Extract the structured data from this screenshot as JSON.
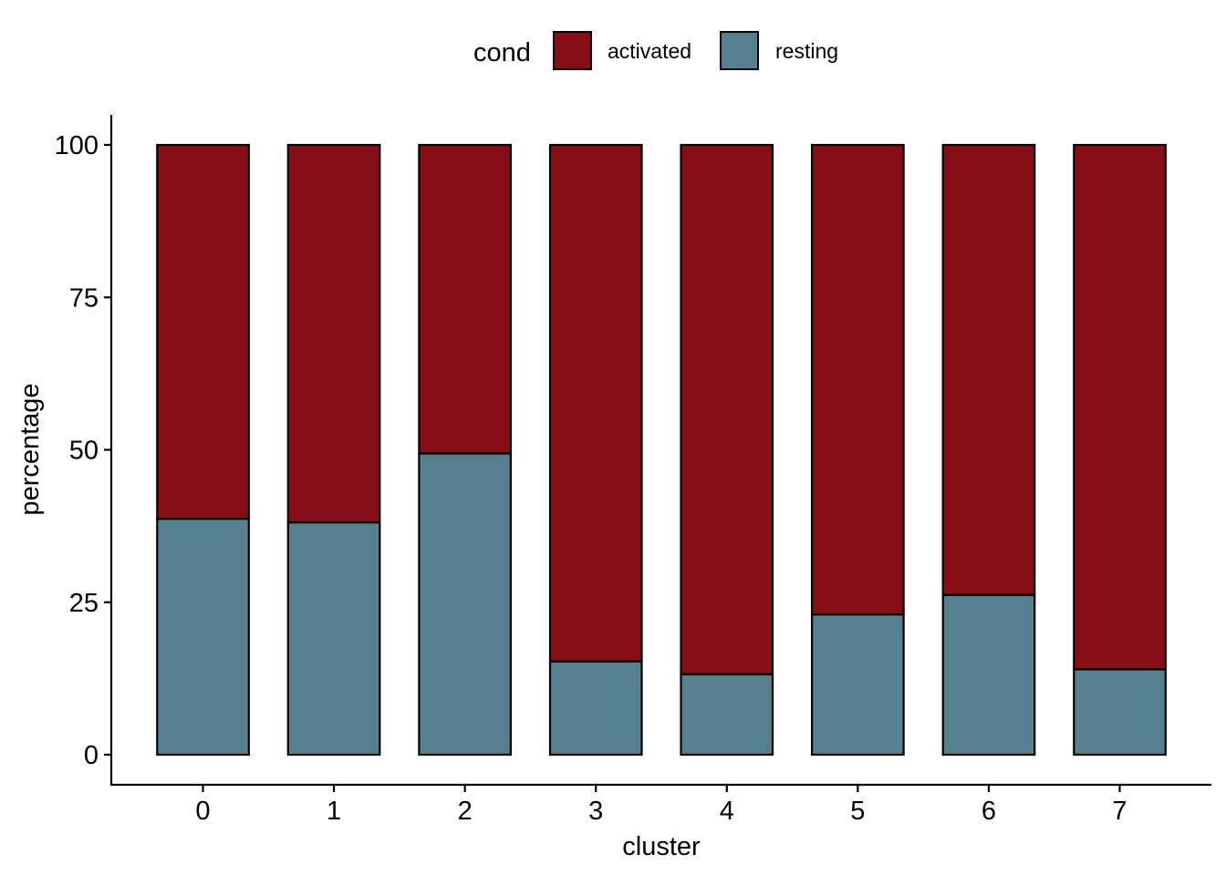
{
  "chart_data": {
    "type": "bar",
    "stacked": true,
    "xlabel": "cluster",
    "ylabel": "percentage",
    "ylim": [
      0,
      105
    ],
    "yticks": [
      0,
      25,
      50,
      75,
      100
    ],
    "categories": [
      "0",
      "1",
      "2",
      "3",
      "4",
      "5",
      "6",
      "7"
    ],
    "series": [
      {
        "name": "resting",
        "color": "#56808F",
        "values": [
          38.7,
          38.1,
          49.4,
          15.3,
          13.2,
          23.0,
          26.2,
          14.0
        ]
      },
      {
        "name": "activated",
        "color": "#870E17",
        "values": [
          61.3,
          61.9,
          50.6,
          84.7,
          86.8,
          77.0,
          73.8,
          86.0
        ]
      }
    ],
    "legend": {
      "title": "cond",
      "position": "top",
      "entries": [
        "activated",
        "resting"
      ]
    },
    "grid": false
  }
}
